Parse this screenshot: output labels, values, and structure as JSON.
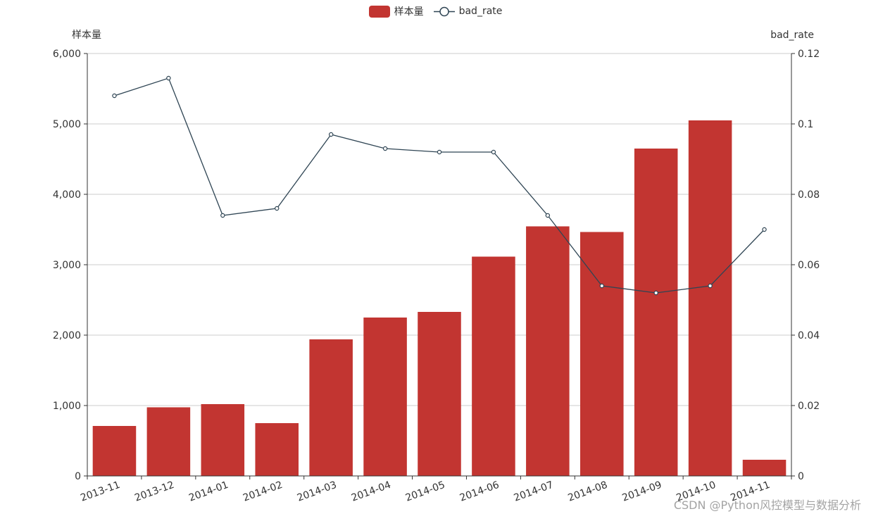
{
  "legend": {
    "bar_label": "样本量",
    "line_label": "bad_rate"
  },
  "watermark": "CSDN @Python风控模型与数据分析",
  "colors": {
    "bar": "#c23531",
    "line": "#2f4554",
    "grid": "#cccccc",
    "axis": "#333333",
    "text": "#333333"
  },
  "chart_data": {
    "type": "bar",
    "categories": [
      "2013-11",
      "2013-12",
      "2014-01",
      "2014-02",
      "2014-03",
      "2014-04",
      "2014-05",
      "2014-06",
      "2014-07",
      "2014-08",
      "2014-09",
      "2014-10",
      "2014-11"
    ],
    "series": [
      {
        "name": "样本量",
        "type": "bar",
        "axis": "left",
        "values": [
          710,
          975,
          1020,
          750,
          1940,
          2250,
          2330,
          3115,
          3545,
          3465,
          4650,
          5050,
          230
        ]
      },
      {
        "name": "bad_rate",
        "type": "line",
        "axis": "right",
        "values": [
          0.108,
          0.113,
          0.074,
          0.076,
          0.097,
          0.093,
          0.092,
          0.092,
          0.074,
          0.054,
          0.052,
          0.054,
          0.07
        ]
      }
    ],
    "ylabel_left": "样本量",
    "ylabel_right": "bad_rate",
    "ylim_left": [
      0,
      6000
    ],
    "ylim_right": [
      0,
      0.12
    ],
    "yticks_left": [
      "0",
      "1,000",
      "2,000",
      "3,000",
      "4,000",
      "5,000",
      "6,000"
    ],
    "yticks_right": [
      "0",
      "0.02",
      "0.04",
      "0.06",
      "0.08",
      "0.1",
      "0.12"
    ],
    "grid": true,
    "legend_position": "top-center"
  }
}
